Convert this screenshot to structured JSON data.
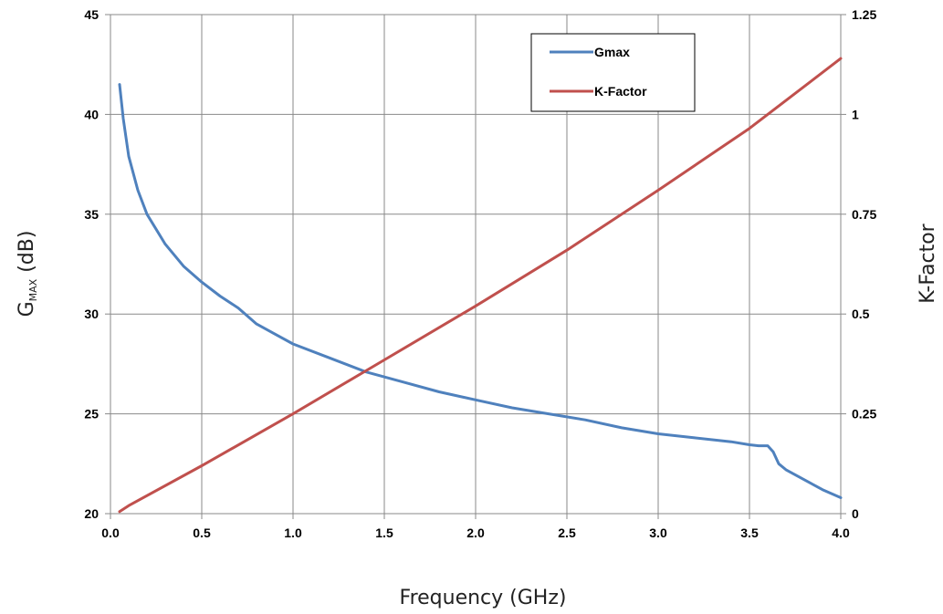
{
  "chart_data": {
    "type": "line",
    "xlabel": "Frequency (GHz)",
    "ylabel": {
      "main": "G",
      "subscript": "MAX",
      "suffix": " (dB)"
    },
    "y2label": "K-Factor",
    "xlim": [
      0,
      4.0
    ],
    "ylim": [
      20,
      45
    ],
    "y2lim": [
      0,
      1.25
    ],
    "x_ticks": [
      "0.0",
      "0.5",
      "1.0",
      "1.5",
      "2.0",
      "2.5",
      "3.0",
      "3.5",
      "4.0"
    ],
    "y_ticks": [
      "20",
      "25",
      "30",
      "35",
      "40",
      "45"
    ],
    "y2_ticks": [
      "0",
      "0.25",
      "0.5",
      "0.75",
      "1",
      "1.25"
    ],
    "grid": true,
    "legend_position": "top-right",
    "series": [
      {
        "name": "Gmax",
        "axis": "left",
        "color": "#4f81bd",
        "points": [
          [
            0.05,
            41.5
          ],
          [
            0.07,
            39.8
          ],
          [
            0.1,
            37.9
          ],
          [
            0.15,
            36.2
          ],
          [
            0.2,
            35.0
          ],
          [
            0.3,
            33.5
          ],
          [
            0.4,
            32.4
          ],
          [
            0.5,
            31.6
          ],
          [
            0.6,
            30.9
          ],
          [
            0.7,
            30.3
          ],
          [
            0.8,
            29.5
          ],
          [
            0.9,
            29.0
          ],
          [
            1.0,
            28.5
          ],
          [
            1.2,
            27.8
          ],
          [
            1.4,
            27.1
          ],
          [
            1.6,
            26.6
          ],
          [
            1.8,
            26.1
          ],
          [
            2.0,
            25.7
          ],
          [
            2.2,
            25.3
          ],
          [
            2.4,
            25.0
          ],
          [
            2.6,
            24.7
          ],
          [
            2.8,
            24.3
          ],
          [
            3.0,
            24.0
          ],
          [
            3.2,
            23.8
          ],
          [
            3.4,
            23.6
          ],
          [
            3.5,
            23.45
          ],
          [
            3.55,
            23.4
          ],
          [
            3.6,
            23.4
          ],
          [
            3.63,
            23.1
          ],
          [
            3.66,
            22.5
          ],
          [
            3.7,
            22.2
          ],
          [
            3.8,
            21.7
          ],
          [
            3.9,
            21.2
          ],
          [
            4.0,
            20.8
          ]
        ]
      },
      {
        "name": "K-Factor",
        "axis": "right",
        "color": "#c0504d",
        "points": [
          [
            0.05,
            0.005
          ],
          [
            0.1,
            0.02
          ],
          [
            0.5,
            0.12
          ],
          [
            1.0,
            0.25
          ],
          [
            1.5,
            0.385
          ],
          [
            2.0,
            0.52
          ],
          [
            2.5,
            0.66
          ],
          [
            3.0,
            0.81
          ],
          [
            3.5,
            0.965
          ],
          [
            4.0,
            1.14
          ]
        ]
      }
    ]
  }
}
